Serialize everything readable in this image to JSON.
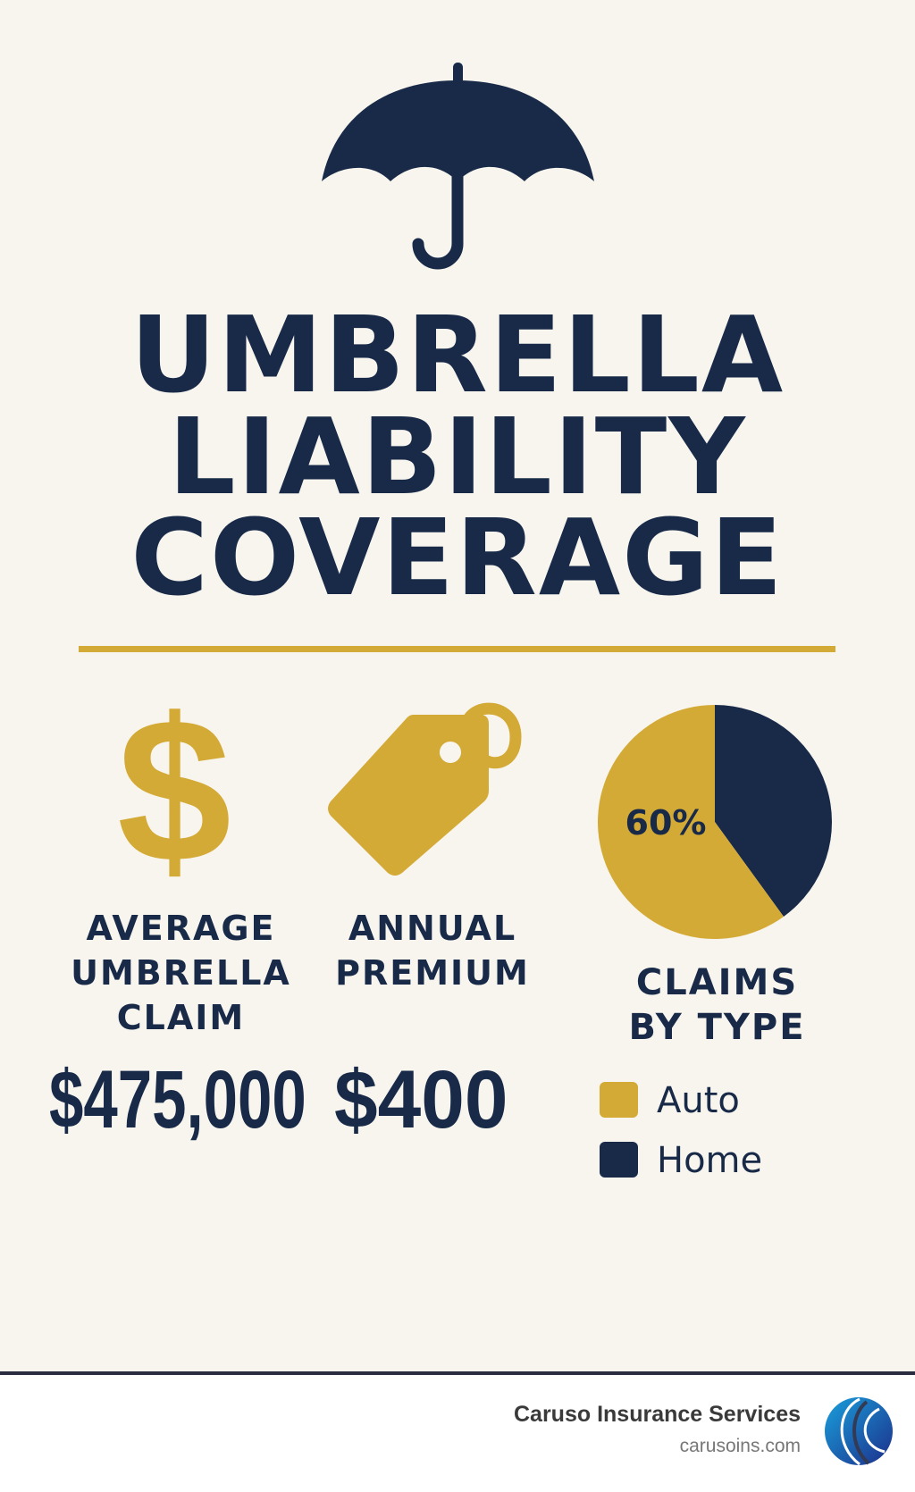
{
  "title_lines": [
    "UMBRELLA",
    "LIABILITY",
    "COVERAGE"
  ],
  "colors": {
    "navy": "#182a48",
    "gold": "#d4aa36",
    "background": "#f8f5ef"
  },
  "icons": [
    "umbrella-icon",
    "dollar-sign-icon",
    "price-tag-icon"
  ],
  "stats": [
    {
      "label_lines": [
        "AVERAGE",
        "UMBRELLA",
        "CLAIM"
      ],
      "value": "$475,000"
    },
    {
      "label_lines": [
        "ANNUAL",
        "PREMIUM"
      ],
      "value": "$400"
    }
  ],
  "chart_data": {
    "type": "pie",
    "title_lines": [
      "CLAIMS",
      "BY TYPE"
    ],
    "slices": [
      {
        "name": "Auto",
        "value": 60,
        "color": "#d4aa36",
        "label": "60%"
      },
      {
        "name": "Home",
        "value": 40,
        "color": "#182a48"
      }
    ],
    "legend": "bottom"
  },
  "footer": {
    "company": "Caruso Insurance Services",
    "website": "carusoins.com"
  }
}
